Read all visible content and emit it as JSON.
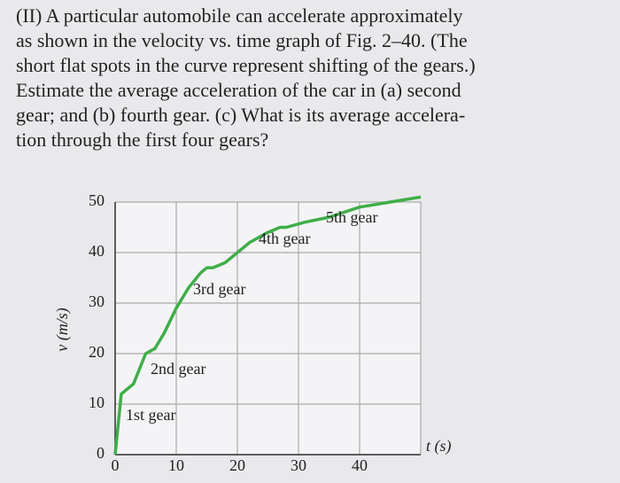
{
  "problem": {
    "lines": [
      "(II) A particular automobile can accelerate approximately",
      "as shown in the velocity vs. time graph of Fig. 2–40. (The",
      "short flat spots in the curve represent shifting of the gears.)",
      "Estimate the average acceleration of the car in (a) second",
      "gear; and (b) fourth gear. (c) What is its average accelera-",
      "tion through the first four gears?"
    ]
  },
  "chart_data": {
    "type": "line",
    "x_label": "t (s)",
    "y_label": "v (m/s)",
    "xlim": [
      0,
      50
    ],
    "ylim": [
      0,
      50
    ],
    "xticks": [
      0,
      10,
      20,
      30,
      40
    ],
    "yticks": [
      0,
      10,
      20,
      30,
      40,
      50
    ],
    "grid": true,
    "series": [
      {
        "color": "#3fae49",
        "x": [
          0,
          1,
          2,
          3,
          5,
          6.5,
          8,
          10,
          12,
          14,
          15,
          16,
          18,
          20,
          22,
          25,
          27,
          28,
          31,
          35,
          40,
          45,
          50
        ],
        "values": [
          0,
          12,
          13,
          14,
          20,
          21,
          24,
          29,
          33,
          36,
          37,
          37,
          38,
          40,
          42,
          44,
          45,
          45,
          46,
          47,
          49,
          50,
          51
        ]
      }
    ],
    "annotations": [
      "1st gear",
      "2nd gear",
      "3rd gear",
      "4th gear",
      "5th gear"
    ]
  }
}
